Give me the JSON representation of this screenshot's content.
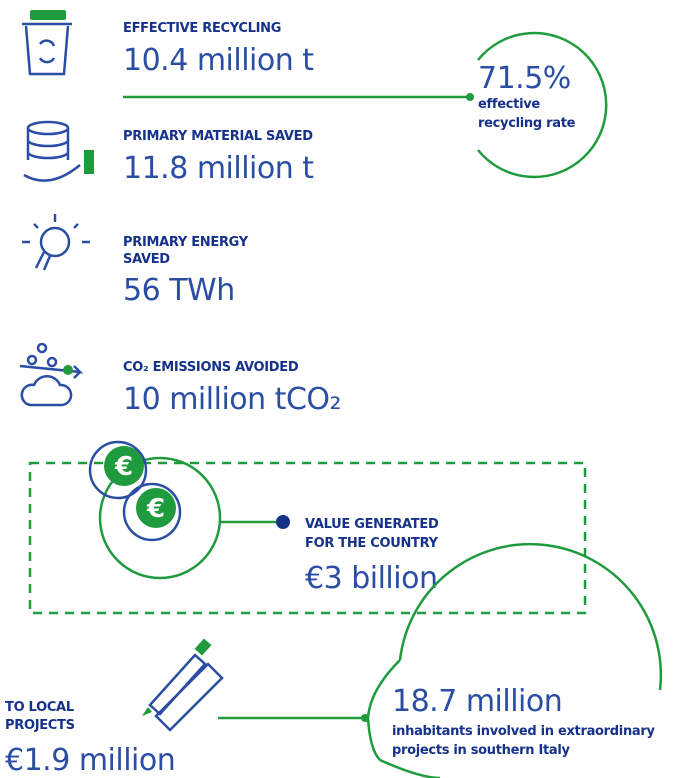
{
  "items": [
    {
      "label": [
        "EFFECTIVE RECYCLING"
      ],
      "value": "10.4 million t"
    },
    {
      "label": [
        "PRIMARY MATERIAL SAVED"
      ],
      "value": "11.8 million t"
    },
    {
      "label": [
        "PRIMARY ENERGY",
        "SAVED"
      ],
      "value": "56 TWh"
    },
    {
      "label": [
        "CO₂ EMISSIONS AVOIDED"
      ],
      "value": "10 million tCO₂"
    }
  ],
  "rate": {
    "value": "71.5%",
    "text": [
      "effective",
      "recycling rate"
    ]
  },
  "country": {
    "label": [
      "VALUE GENERATED",
      "FOR THE COUNTRY"
    ],
    "value": "€3 billion"
  },
  "local": {
    "label": [
      "TO LOCAL",
      "PROJECTS"
    ],
    "value": "€1.9 million"
  },
  "inhabitants": {
    "value": "18.7 million",
    "text": [
      "inhabitants involved in extraordinary",
      "projects in southern Italy"
    ]
  }
}
